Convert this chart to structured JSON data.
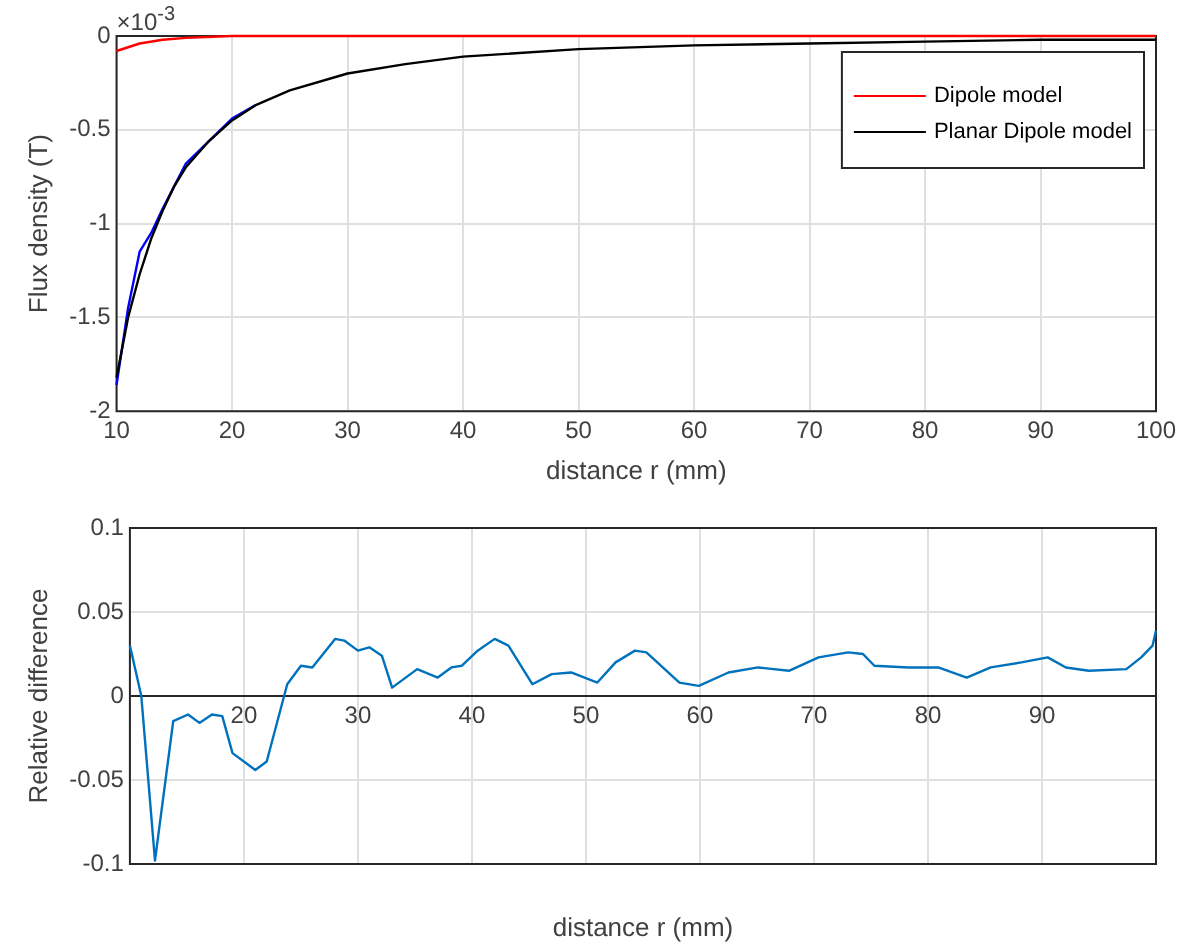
{
  "chart_data": [
    {
      "type": "line",
      "xlabel": "distance r (mm)",
      "ylabel": "Flux density (T)",
      "annotations": [
        "×10$^{-3}$"
      ],
      "xlim": [
        10,
        100
      ],
      "xticks": [
        10,
        20,
        30,
        40,
        50,
        60,
        70,
        80,
        90,
        100
      ],
      "ylim": [
        -2,
        0
      ],
      "yticks": [
        -2,
        -1.5,
        -1,
        -0.5,
        0
      ],
      "grid": true,
      "legend": "top right",
      "series": [
        {
          "color": "#0000ff",
          "x": [
            10,
            11,
            12,
            13,
            14,
            15,
            16,
            18,
            20,
            22
          ],
          "values": [
            -1.86,
            -1.45,
            -1.15,
            -1.05,
            -0.92,
            -0.8,
            -0.68,
            -0.56,
            -0.44,
            -0.37
          ]
        },
        {
          "name": "Dipole model",
          "color": "#ff0000",
          "x": [
            10,
            12,
            14,
            16,
            20,
            30,
            40,
            100
          ],
          "values": [
            -0.08,
            -0.04,
            -0.02,
            -0.01,
            0,
            0,
            0,
            0
          ]
        },
        {
          "name": "Planar Dipole model",
          "color": "#000000",
          "x": [
            10,
            11,
            12,
            13,
            14,
            15,
            16,
            18,
            20,
            22,
            25,
            30,
            35,
            40,
            50,
            60,
            70,
            80,
            90,
            100
          ],
          "values": [
            -1.82,
            -1.5,
            -1.27,
            -1.08,
            -0.93,
            -0.8,
            -0.7,
            -0.56,
            -0.45,
            -0.37,
            -0.29,
            -0.2,
            -0.15,
            -0.11,
            -0.07,
            -0.05,
            -0.04,
            -0.03,
            -0.02,
            -0.02
          ]
        }
      ]
    },
    {
      "type": "line",
      "xlabel": "distance r (mm)",
      "ylabel": "Relative difference",
      "xlim": [
        10,
        100
      ],
      "xticks": [
        20,
        30,
        40,
        50,
        60,
        70,
        80,
        90
      ],
      "ylim": [
        -0.1,
        0.1
      ],
      "yticks": [
        -0.1,
        -0.05,
        0,
        0.05,
        0.1
      ],
      "grid": true,
      "series": [
        {
          "color": "#0072bd",
          "x": [
            10,
            11,
            12.2,
            13.8,
            15.1,
            16.1,
            17.2,
            18.1,
            19,
            21,
            22,
            23.8,
            25,
            26,
            28,
            28.8,
            30,
            31,
            32.1,
            33,
            35.2,
            37,
            38.2,
            39.1,
            40.5,
            42,
            43.2,
            45.3,
            47,
            48.7,
            51,
            52.6,
            54.3,
            55.3,
            58.2,
            59.9,
            62.5,
            65.1,
            67.8,
            70.4,
            73,
            74.3,
            75.3,
            78.3,
            80.9,
            83.4,
            85.5,
            88.2,
            90.5,
            92.1,
            94.1,
            97.4,
            98.7,
            99.7,
            100
          ],
          "values": [
            0.03,
            0,
            -0.098,
            -0.015,
            -0.011,
            -0.016,
            -0.011,
            -0.012,
            -0.034,
            -0.044,
            -0.039,
            0.007,
            0.018,
            0.017,
            0.034,
            0.033,
            0.027,
            0.029,
            0.024,
            0.005,
            0.016,
            0.011,
            0.017,
            0.018,
            0.027,
            0.034,
            0.03,
            0.007,
            0.013,
            0.014,
            0.008,
            0.02,
            0.027,
            0.026,
            0.008,
            0.006,
            0.014,
            0.017,
            0.015,
            0.023,
            0.026,
            0.025,
            0.018,
            0.017,
            0.017,
            0.011,
            0.017,
            0.02,
            0.023,
            0.017,
            0.015,
            0.016,
            0.023,
            0.03,
            0.039
          ]
        }
      ]
    }
  ]
}
